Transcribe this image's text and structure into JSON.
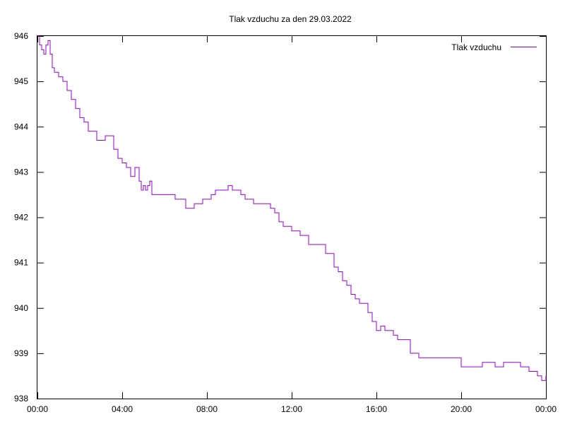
{
  "chart_data": {
    "type": "line",
    "title": "Tlak vzduchu za den 29.03.2022",
    "xlabel": "",
    "ylabel": "",
    "x_ticks": [
      "00:00",
      "04:00",
      "08:00",
      "12:00",
      "16:00",
      "20:00",
      "00:00"
    ],
    "y_ticks": [
      938,
      939,
      940,
      941,
      942,
      943,
      944,
      945,
      946
    ],
    "xlim": [
      0,
      24
    ],
    "ylim": [
      938,
      946
    ],
    "grid": false,
    "legend": "top-right",
    "colors": {
      "series": "#9400d3",
      "axis": "#000000"
    },
    "series": [
      {
        "name": "Tlak vzduchu",
        "x": [
          0.0,
          0.1,
          0.2,
          0.3,
          0.4,
          0.5,
          0.6,
          0.7,
          0.75,
          0.8,
          0.9,
          1.0,
          1.2,
          1.4,
          1.6,
          1.8,
          2.0,
          2.2,
          2.4,
          2.6,
          2.8,
          3.0,
          3.2,
          3.4,
          3.6,
          3.8,
          4.0,
          4.2,
          4.4,
          4.6,
          4.8,
          4.9,
          5.0,
          5.1,
          5.2,
          5.3,
          5.4,
          5.5,
          5.6,
          5.7,
          5.8,
          6.0,
          6.5,
          7.0,
          7.2,
          7.4,
          7.6,
          7.8,
          8.0,
          8.2,
          8.4,
          8.6,
          8.8,
          9.0,
          9.2,
          9.4,
          9.6,
          9.8,
          10.0,
          10.2,
          10.4,
          10.6,
          10.8,
          11.0,
          11.2,
          11.4,
          11.6,
          11.8,
          12.0,
          12.4,
          12.8,
          13.2,
          13.6,
          14.0,
          14.2,
          14.4,
          14.6,
          14.8,
          15.0,
          15.2,
          15.4,
          15.6,
          15.8,
          16.0,
          16.2,
          16.4,
          16.6,
          16.8,
          17.0,
          17.2,
          17.6,
          18.0,
          18.5,
          19.0,
          19.5,
          20.0,
          20.4,
          20.8,
          21.0,
          21.2,
          21.6,
          22.0,
          22.4,
          22.8,
          23.0,
          23.2,
          23.4,
          23.6,
          23.8,
          24.0
        ],
        "y": [
          946.0,
          945.8,
          945.7,
          945.6,
          945.8,
          945.9,
          945.6,
          945.3,
          945.3,
          945.2,
          945.2,
          945.1,
          945.0,
          944.8,
          944.6,
          944.4,
          944.2,
          944.1,
          943.9,
          943.9,
          943.7,
          943.7,
          943.8,
          943.8,
          943.5,
          943.3,
          943.2,
          943.1,
          942.9,
          943.1,
          942.8,
          942.6,
          942.7,
          942.6,
          942.7,
          942.8,
          942.5,
          942.5,
          942.5,
          942.5,
          942.5,
          942.5,
          942.4,
          942.2,
          942.2,
          942.3,
          942.3,
          942.4,
          942.4,
          942.5,
          942.6,
          942.6,
          942.6,
          942.7,
          942.6,
          942.6,
          942.5,
          942.4,
          942.4,
          942.3,
          942.3,
          942.3,
          942.3,
          942.2,
          942.1,
          941.9,
          941.8,
          941.8,
          941.7,
          941.6,
          941.4,
          941.4,
          941.2,
          940.9,
          940.8,
          940.6,
          940.5,
          940.3,
          940.2,
          940.1,
          940.1,
          939.9,
          939.7,
          939.5,
          939.6,
          939.5,
          939.5,
          939.4,
          939.3,
          939.3,
          939.0,
          938.9,
          938.9,
          938.9,
          938.9,
          938.7,
          938.7,
          938.7,
          938.8,
          938.8,
          938.7,
          938.8,
          938.8,
          938.7,
          938.7,
          938.6,
          938.6,
          938.5,
          938.4,
          938.5
        ]
      }
    ]
  }
}
